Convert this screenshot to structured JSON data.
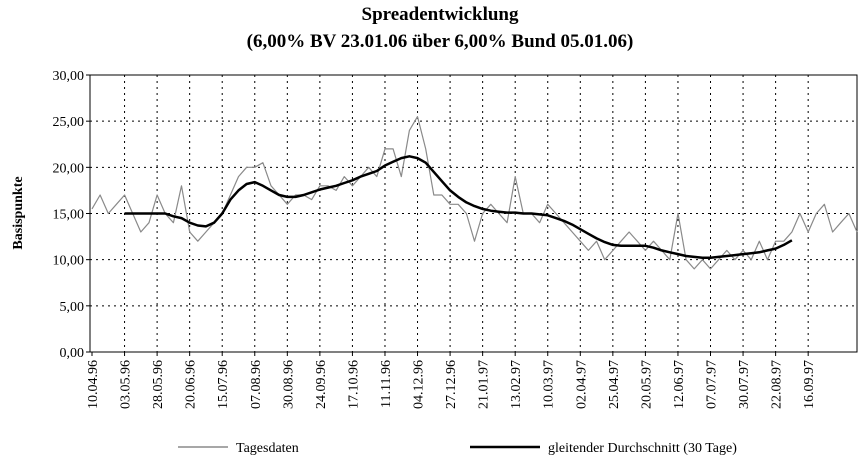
{
  "chart_data": {
    "type": "line",
    "title": "Spreadentwicklung",
    "subtitle": "(6,00% BV 23.01.06 über 6,00% Bund 05.01.06)",
    "y_label": "Basispunkte",
    "categories": [
      "10.04.96",
      null,
      null,
      null,
      "03.05.96",
      null,
      null,
      null,
      "28.05.96",
      null,
      null,
      null,
      "20.06.96",
      null,
      null,
      null,
      "15.07.96",
      null,
      null,
      null,
      "07.08.96",
      null,
      null,
      null,
      "30.08.96",
      null,
      null,
      null,
      "24.09.96",
      null,
      null,
      null,
      "17.10.96",
      null,
      null,
      null,
      "11.11.96",
      null,
      null,
      null,
      "04.12.96",
      null,
      null,
      null,
      "27.12.96",
      null,
      null,
      null,
      "21.01.97",
      null,
      null,
      null,
      "13.02.97",
      null,
      null,
      null,
      "10.03.97",
      null,
      null,
      null,
      "02.04.97",
      null,
      null,
      null,
      "25.04.97",
      null,
      null,
      null,
      "20.05.97",
      null,
      null,
      null,
      "12.06.97",
      null,
      null,
      null,
      "07.07.97",
      null,
      null,
      null,
      "30.07.97",
      null,
      null,
      null,
      "22.08.97",
      null,
      null,
      null,
      "16.09.97",
      null,
      null,
      null,
      null,
      null,
      null
    ],
    "series": [
      {
        "name": "Tagesdaten",
        "color": "#8a8a8a",
        "values": [
          15.5,
          17,
          15,
          16,
          17,
          15,
          13,
          14,
          17,
          15,
          14,
          18,
          13,
          12,
          13,
          14,
          15,
          17,
          19,
          20,
          20,
          20.5,
          18,
          17,
          16,
          17,
          17,
          16.5,
          18,
          18,
          17.5,
          19,
          18,
          19,
          20,
          19,
          22,
          22,
          19,
          24,
          25.5,
          22,
          17,
          17,
          16,
          16,
          15,
          12,
          15,
          16,
          15,
          14,
          19,
          15,
          15,
          14,
          16,
          15,
          14,
          13,
          12,
          11,
          12,
          10,
          11,
          12,
          13,
          12,
          11,
          12,
          11,
          10,
          15,
          10,
          9,
          10,
          9,
          10,
          11,
          10,
          11,
          10,
          12,
          10,
          12,
          12,
          13,
          15,
          13,
          15,
          16,
          13,
          14,
          15,
          13
        ]
      },
      {
        "name": "gleitender Durchschnitt (30 Tage)",
        "color": "#000000",
        "values": [
          null,
          null,
          null,
          null,
          15,
          15,
          15,
          15,
          15,
          15,
          14.7,
          14.5,
          14,
          13.7,
          13.6,
          14,
          15,
          16.5,
          17.5,
          18.2,
          18.4,
          18,
          17.5,
          17,
          16.8,
          16.8,
          17,
          17.3,
          17.6,
          17.8,
          18,
          18.3,
          18.6,
          19,
          19.3,
          19.6,
          20.2,
          20.6,
          21,
          21.2,
          21,
          20.5,
          19.5,
          18.5,
          17.5,
          16.8,
          16.2,
          15.8,
          15.5,
          15.3,
          15.2,
          15.1,
          15.1,
          15,
          15,
          14.9,
          14.8,
          14.5,
          14.2,
          13.8,
          13.3,
          12.8,
          12.3,
          11.9,
          11.6,
          11.5,
          11.5,
          11.5,
          11.5,
          11.3,
          11,
          10.8,
          10.6,
          10.4,
          10.3,
          10.2,
          10.2,
          10.3,
          10.4,
          10.5,
          10.6,
          10.7,
          10.8,
          11,
          11.2,
          11.6,
          12.1,
          null,
          null,
          null,
          null,
          null,
          null,
          null,
          null
        ]
      }
    ],
    "ylim": [
      0,
      30
    ],
    "yticks": [
      {
        "value": 0,
        "label": "0,00"
      },
      {
        "value": 5,
        "label": "5,00"
      },
      {
        "value": 10,
        "label": "10,00"
      },
      {
        "value": 15,
        "label": "15,00"
      },
      {
        "value": 20,
        "label": "20,00"
      },
      {
        "value": 25,
        "label": "25,00"
      },
      {
        "value": 30,
        "label": "30,00"
      }
    ],
    "grid": true,
    "legend": "bottom"
  }
}
